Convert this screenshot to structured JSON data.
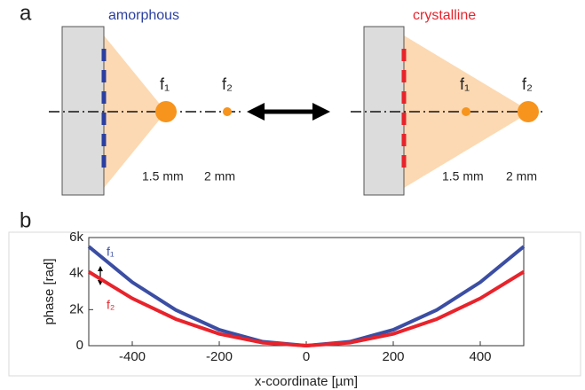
{
  "panel_labels": [
    "a",
    "b"
  ],
  "diagram": {
    "left": {
      "label": "amorphous",
      "foci": [
        "f₁",
        "f₂"
      ],
      "distances": [
        "1.5 mm",
        "2 mm"
      ]
    },
    "right": {
      "label": "crystalline",
      "foci": [
        "f₁",
        "f₂"
      ],
      "distances": [
        "1.5 mm",
        "2 mm"
      ]
    }
  },
  "chart_data": {
    "type": "line",
    "x": [
      -500,
      -400,
      -300,
      -200,
      -100,
      0,
      100,
      200,
      300,
      400,
      500
    ],
    "series": [
      {
        "name": "f₁",
        "color": "#3b4ea3",
        "values": [
          5500,
          3520,
          1980,
          880,
          220,
          0,
          220,
          880,
          1980,
          3520,
          5500
        ]
      },
      {
        "name": "f₂",
        "color": "#e8232b",
        "values": [
          4100,
          2624,
          1476,
          656,
          164,
          0,
          164,
          656,
          1476,
          2624,
          4100
        ]
      }
    ],
    "xlim": [
      -500,
      500
    ],
    "ylim": [
      0,
      6000
    ],
    "xticks": [
      -400,
      -200,
      0,
      200,
      400
    ],
    "yticks": [
      0,
      {
        "value": 2000,
        "label": "2k"
      },
      {
        "value": 4000,
        "label": "4k"
      },
      {
        "value": 6000,
        "label": "6k"
      }
    ],
    "xlabel": "x-coordinate [µm]",
    "ylabel": "phase [rad]"
  }
}
